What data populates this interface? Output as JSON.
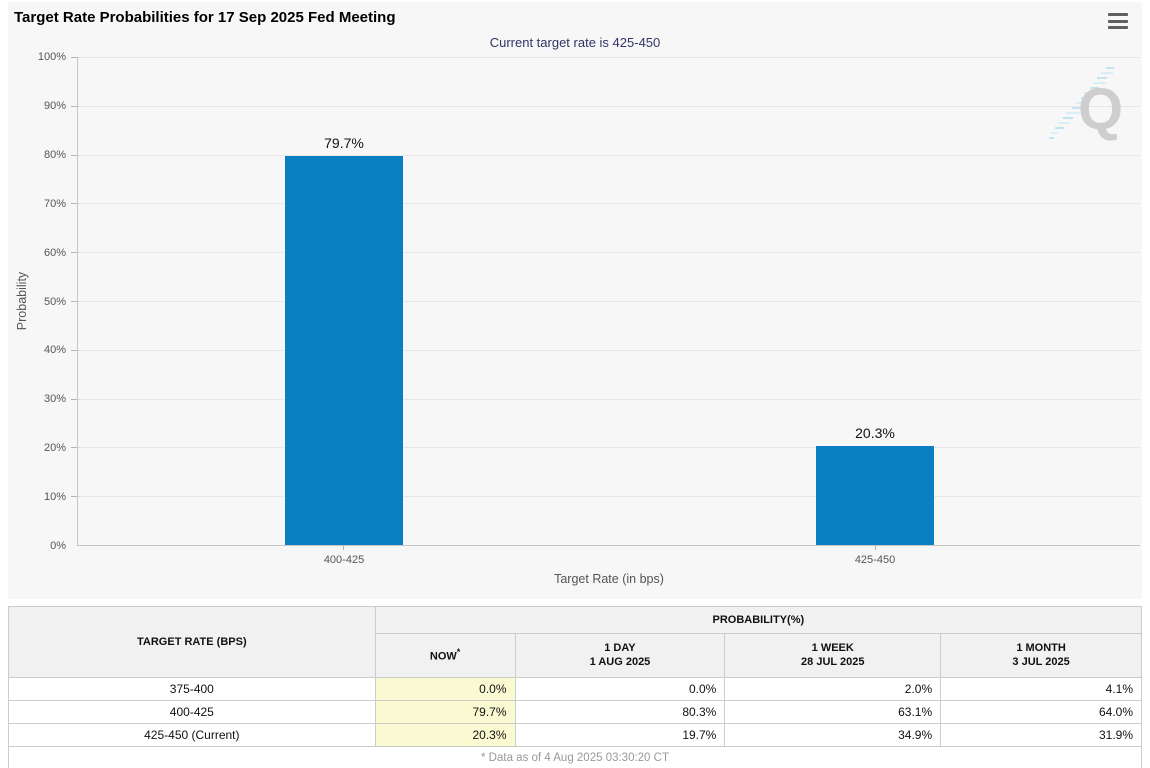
{
  "header": {
    "title": "Target Rate Probabilities for 17 Sep 2025 Fed Meeting"
  },
  "chart": {
    "subtitle": "Current target rate is 425-450",
    "y_axis_title": "Probability",
    "x_axis_title": "Target Rate (in bps)",
    "y_tick_labels": [
      "100%",
      "90%",
      "80%",
      "70%",
      "60%",
      "50%",
      "40%",
      "30%",
      "20%",
      "10%",
      "0%"
    ],
    "watermark_letter": "Q"
  },
  "chart_data": {
    "type": "bar",
    "title": "Target Rate Probabilities for 17 Sep 2025 Fed Meeting",
    "subtitle": "Current target rate is 425-450",
    "categories": [
      "400-425",
      "425-450"
    ],
    "values": [
      79.7,
      20.3
    ],
    "data_labels": [
      "79.7%",
      "20.3%"
    ],
    "xlabel": "Target Rate (in bps)",
    "ylabel": "Probability",
    "ylim": [
      0,
      100
    ],
    "y_tick_step": 10,
    "grid": "horizontal-dotted",
    "legend": "none",
    "bar_color": "#0a80c2"
  },
  "table": {
    "rate_header": "TARGET RATE (BPS)",
    "prob_header": "PROBABILITY(%)",
    "col_headers": [
      {
        "line1": "NOW",
        "sup": "*",
        "line2": ""
      },
      {
        "line1": "1 DAY",
        "line2": "1 AUG 2025"
      },
      {
        "line1": "1 WEEK",
        "line2": "28 JUL 2025"
      },
      {
        "line1": "1 MONTH",
        "line2": "3 JUL 2025"
      }
    ],
    "rows": [
      {
        "rate": "375-400",
        "values": [
          "0.0%",
          "0.0%",
          "2.0%",
          "4.1%"
        ]
      },
      {
        "rate": "400-425",
        "values": [
          "79.7%",
          "80.3%",
          "63.1%",
          "64.0%"
        ]
      },
      {
        "rate": "425-450 (Current)",
        "values": [
          "20.3%",
          "19.7%",
          "34.9%",
          "31.9%"
        ]
      }
    ],
    "footnote": "* Data as of 4 Aug 2025 03:30:20 CT",
    "now_highlight_color": "#fafad2"
  }
}
